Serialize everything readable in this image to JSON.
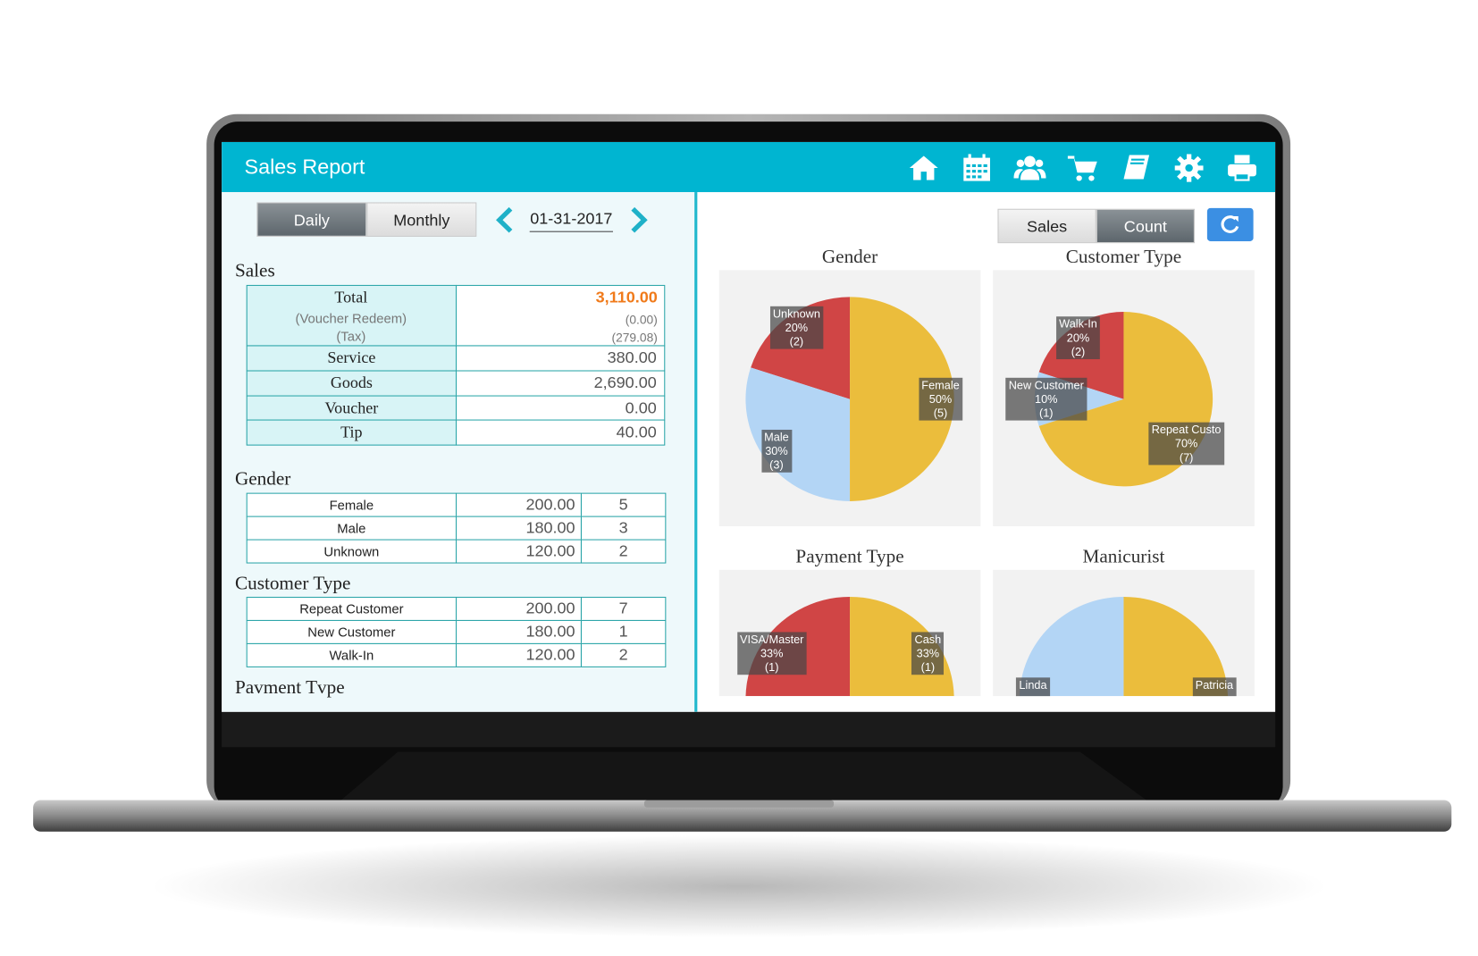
{
  "header": {
    "title": "Sales Report"
  },
  "controls": {
    "period_tabs": [
      "Daily",
      "Monthly"
    ],
    "active_period": 0,
    "date": "01-31-2017",
    "mode_tabs": [
      "Sales",
      "Count"
    ],
    "active_mode": 1
  },
  "sales": {
    "title": "Sales",
    "total": {
      "label": "Total",
      "value": "3,110.00"
    },
    "voucher_redeem": {
      "label": "(Voucher Redeem)",
      "value": "(0.00)"
    },
    "tax": {
      "label": "(Tax)",
      "value": "(279.08)"
    },
    "rows": [
      {
        "label": "Service",
        "value": "380.00"
      },
      {
        "label": "Goods",
        "value": "2,690.00"
      },
      {
        "label": "Voucher",
        "value": "0.00"
      },
      {
        "label": "Tip",
        "value": "40.00"
      }
    ]
  },
  "gender": {
    "title": "Gender",
    "rows": [
      [
        "Female",
        "200.00",
        "5"
      ],
      [
        "Male",
        "180.00",
        "3"
      ],
      [
        "Unknown",
        "120.00",
        "2"
      ]
    ]
  },
  "customer_type": {
    "title": "Customer Type",
    "rows": [
      [
        "Repeat Customer",
        "200.00",
        "7"
      ],
      [
        "New Customer",
        "180.00",
        "1"
      ],
      [
        "Walk-In",
        "120.00",
        "2"
      ]
    ]
  },
  "payment_type": {
    "title": "Pavment Tvpe"
  },
  "charts": [
    {
      "title": "Gender",
      "slices": [
        {
          "name": "Unknown",
          "value": 20,
          "value_label": "20%",
          "count_label": "(2)",
          "color": "#d04545"
        },
        {
          "name": "Male",
          "value": 30,
          "value_label": "30%",
          "count_label": "(3)",
          "color": "#b3d5f5"
        },
        {
          "name": "Female",
          "value": 50,
          "value_label": "50%",
          "count_label": "(5)",
          "color": "#ebbd3c"
        }
      ]
    },
    {
      "title": "Customer Type",
      "slices": [
        {
          "name": "Walk-In",
          "value": 20,
          "value_label": "20%",
          "count_label": "(2)",
          "color": "#d04545"
        },
        {
          "name": "New Customer",
          "value": 10,
          "value_label": "10%",
          "count_label": "(1)",
          "color": "#b3d5f5"
        },
        {
          "name": "Repeat Custo",
          "value": 70,
          "value_label": "70%",
          "count_label": "(7)",
          "color": "#ebbd3c"
        }
      ]
    },
    {
      "title": "Payment Type",
      "slices": [
        {
          "name": "VISA/Master",
          "value": 33,
          "value_label": "33%",
          "count_label": "(1)",
          "color": "#d04545"
        },
        {
          "name": "Cash",
          "value": 33,
          "value_label": "33%",
          "count_label": "(1)",
          "color": "#ebbd3c"
        }
      ]
    },
    {
      "title": "Manicurist",
      "slices": [
        {
          "name": "Linda",
          "value": 50,
          "color": "#b3d5f5"
        },
        {
          "name": "Patricia",
          "value": 50,
          "color": "#ebbd3c"
        }
      ]
    }
  ]
}
